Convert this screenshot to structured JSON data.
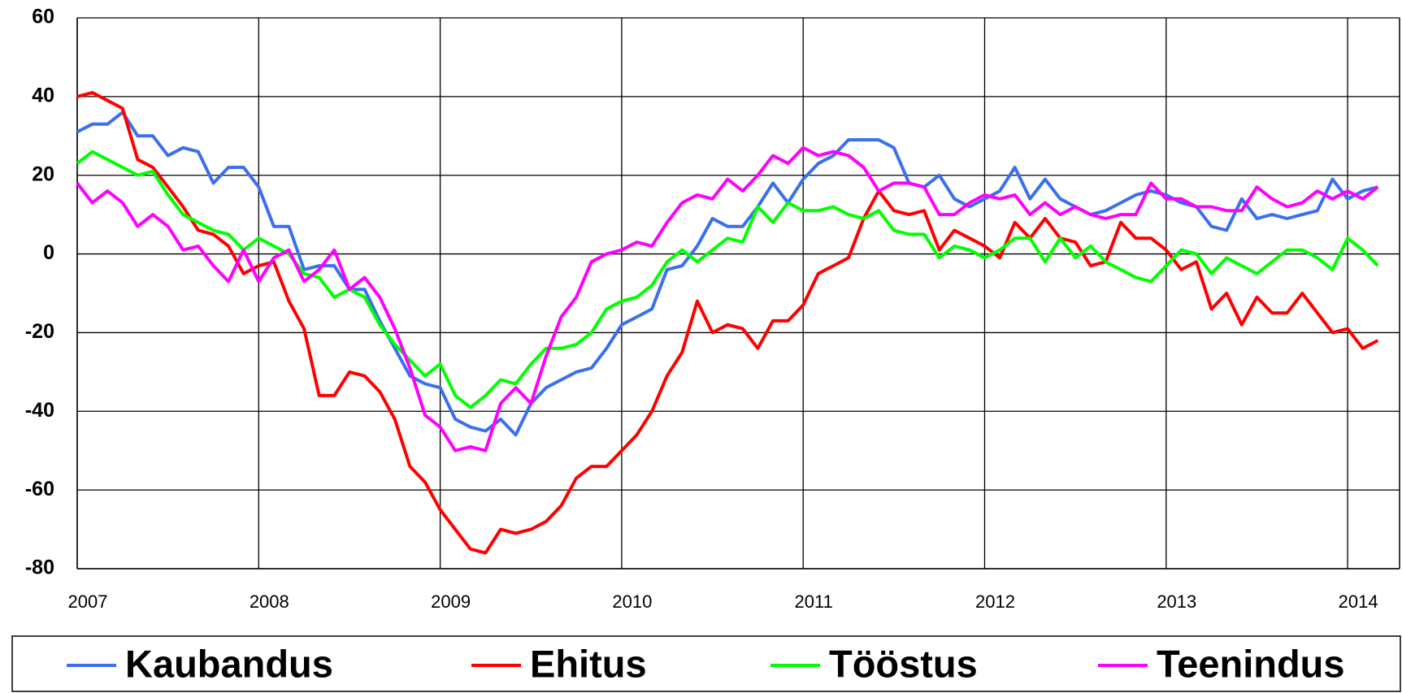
{
  "chart_data": {
    "type": "line",
    "categories": [
      "2007",
      null,
      null,
      null,
      null,
      null,
      null,
      null,
      null,
      null,
      null,
      null,
      "2008",
      null,
      null,
      null,
      null,
      null,
      null,
      null,
      null,
      null,
      null,
      null,
      "2009",
      null,
      null,
      null,
      null,
      null,
      null,
      null,
      null,
      null,
      null,
      null,
      "2010",
      null,
      null,
      null,
      null,
      null,
      null,
      null,
      null,
      null,
      null,
      null,
      "2011",
      null,
      null,
      null,
      null,
      null,
      null,
      null,
      null,
      null,
      null,
      null,
      "2012",
      null,
      null,
      null,
      null,
      null,
      null,
      null,
      null,
      null,
      null,
      null,
      "2013",
      null,
      null,
      null,
      null,
      null,
      null,
      null,
      null,
      null,
      null,
      null,
      "2014",
      null,
      null
    ],
    "series": [
      {
        "name": "Kaubandus",
        "color": "#3b6ff0",
        "values": [
          31,
          33,
          33,
          36,
          30,
          30,
          25,
          27,
          26,
          18,
          22,
          22,
          17,
          7,
          7,
          -4,
          -3,
          -3,
          -9,
          -9,
          -17,
          -24,
          -31,
          -33,
          -34,
          -42,
          -44,
          -45,
          -42,
          -46,
          -38,
          -34,
          -32,
          -30,
          -29,
          -24,
          -18,
          -16,
          -14,
          -4,
          -3,
          2,
          9,
          7,
          7,
          12,
          18,
          13,
          19,
          23,
          25,
          29,
          29,
          29,
          27,
          18,
          17,
          20,
          14,
          12,
          14,
          16,
          22,
          14,
          19,
          14,
          12,
          10,
          11,
          13,
          15,
          16,
          15,
          13,
          12,
          7,
          6,
          14,
          9,
          10,
          9,
          10,
          11,
          19,
          14,
          16,
          17
        ]
      },
      {
        "name": "Ehitus",
        "color": "#ff0000",
        "values": [
          40,
          41,
          39,
          37,
          24,
          22,
          17,
          12,
          6,
          5,
          2,
          -5,
          -3,
          -2,
          -12,
          -19,
          -36,
          -36,
          -30,
          -31,
          -35,
          -42,
          -54,
          -58,
          -65,
          -70,
          -75,
          -76,
          -70,
          -71,
          -70,
          -68,
          -64,
          -57,
          -54,
          -54,
          -50,
          -46,
          -40,
          -31,
          -25,
          -12,
          -20,
          -18,
          -19,
          -24,
          -17,
          -17,
          -13,
          -5,
          -3,
          -1,
          9,
          16,
          11,
          10,
          11,
          1,
          6,
          4,
          2,
          -1,
          8,
          4,
          9,
          4,
          3,
          -3,
          -2,
          8,
          4,
          4,
          1,
          -4,
          -2,
          -14,
          -10,
          -18,
          -11,
          -15,
          -15,
          -10,
          -15,
          -20,
          -19,
          -24,
          -22
        ]
      },
      {
        "name": "Tööstus",
        "color": "#00ff00",
        "values": [
          23,
          26,
          24,
          22,
          20,
          21,
          15,
          10,
          8,
          6,
          5,
          1,
          4,
          2,
          0,
          -5,
          -6,
          -11,
          -9,
          -11,
          -18,
          -23,
          -27,
          -31,
          -28,
          -36,
          -39,
          -36,
          -32,
          -33,
          -28,
          -24,
          -24,
          -23,
          -20,
          -14,
          -12,
          -11,
          -8,
          -2,
          1,
          -2,
          1,
          4,
          3,
          12,
          8,
          13,
          11,
          11,
          12,
          10,
          9,
          11,
          6,
          5,
          5,
          -1,
          2,
          1,
          -1,
          1,
          4,
          4,
          -2,
          4,
          -1,
          2,
          -2,
          -4,
          -6,
          -7,
          -3,
          1,
          0,
          -5,
          -1,
          -3,
          -5,
          -2,
          1,
          1,
          -1,
          -4,
          4,
          1,
          -3
        ]
      },
      {
        "name": "Teenindus",
        "color": "#ff00ff",
        "values": [
          18,
          13,
          16,
          13,
          7,
          10,
          7,
          1,
          2,
          -3,
          -7,
          1,
          -7,
          -1,
          1,
          -7,
          -4,
          1,
          -9,
          -6,
          -11,
          -19,
          -29,
          -41,
          -44,
          -50,
          -49,
          -50,
          -38,
          -34,
          -38,
          -26,
          -16,
          -11,
          -2,
          0,
          1,
          3,
          2,
          8,
          13,
          15,
          14,
          19,
          16,
          20,
          25,
          23,
          27,
          25,
          26,
          25,
          22,
          16,
          18,
          18,
          17,
          10,
          10,
          13,
          15,
          14,
          15,
          10,
          13,
          10,
          12,
          10,
          9,
          10,
          10,
          18,
          14,
          14,
          12,
          12,
          11,
          11,
          17,
          14,
          12,
          13,
          16,
          14,
          16,
          14,
          17
        ]
      }
    ],
    "ylim": [
      -80,
      60
    ],
    "yticks": [
      -80,
      -60,
      -40,
      -20,
      0,
      20,
      40,
      60
    ],
    "grid": true
  }
}
